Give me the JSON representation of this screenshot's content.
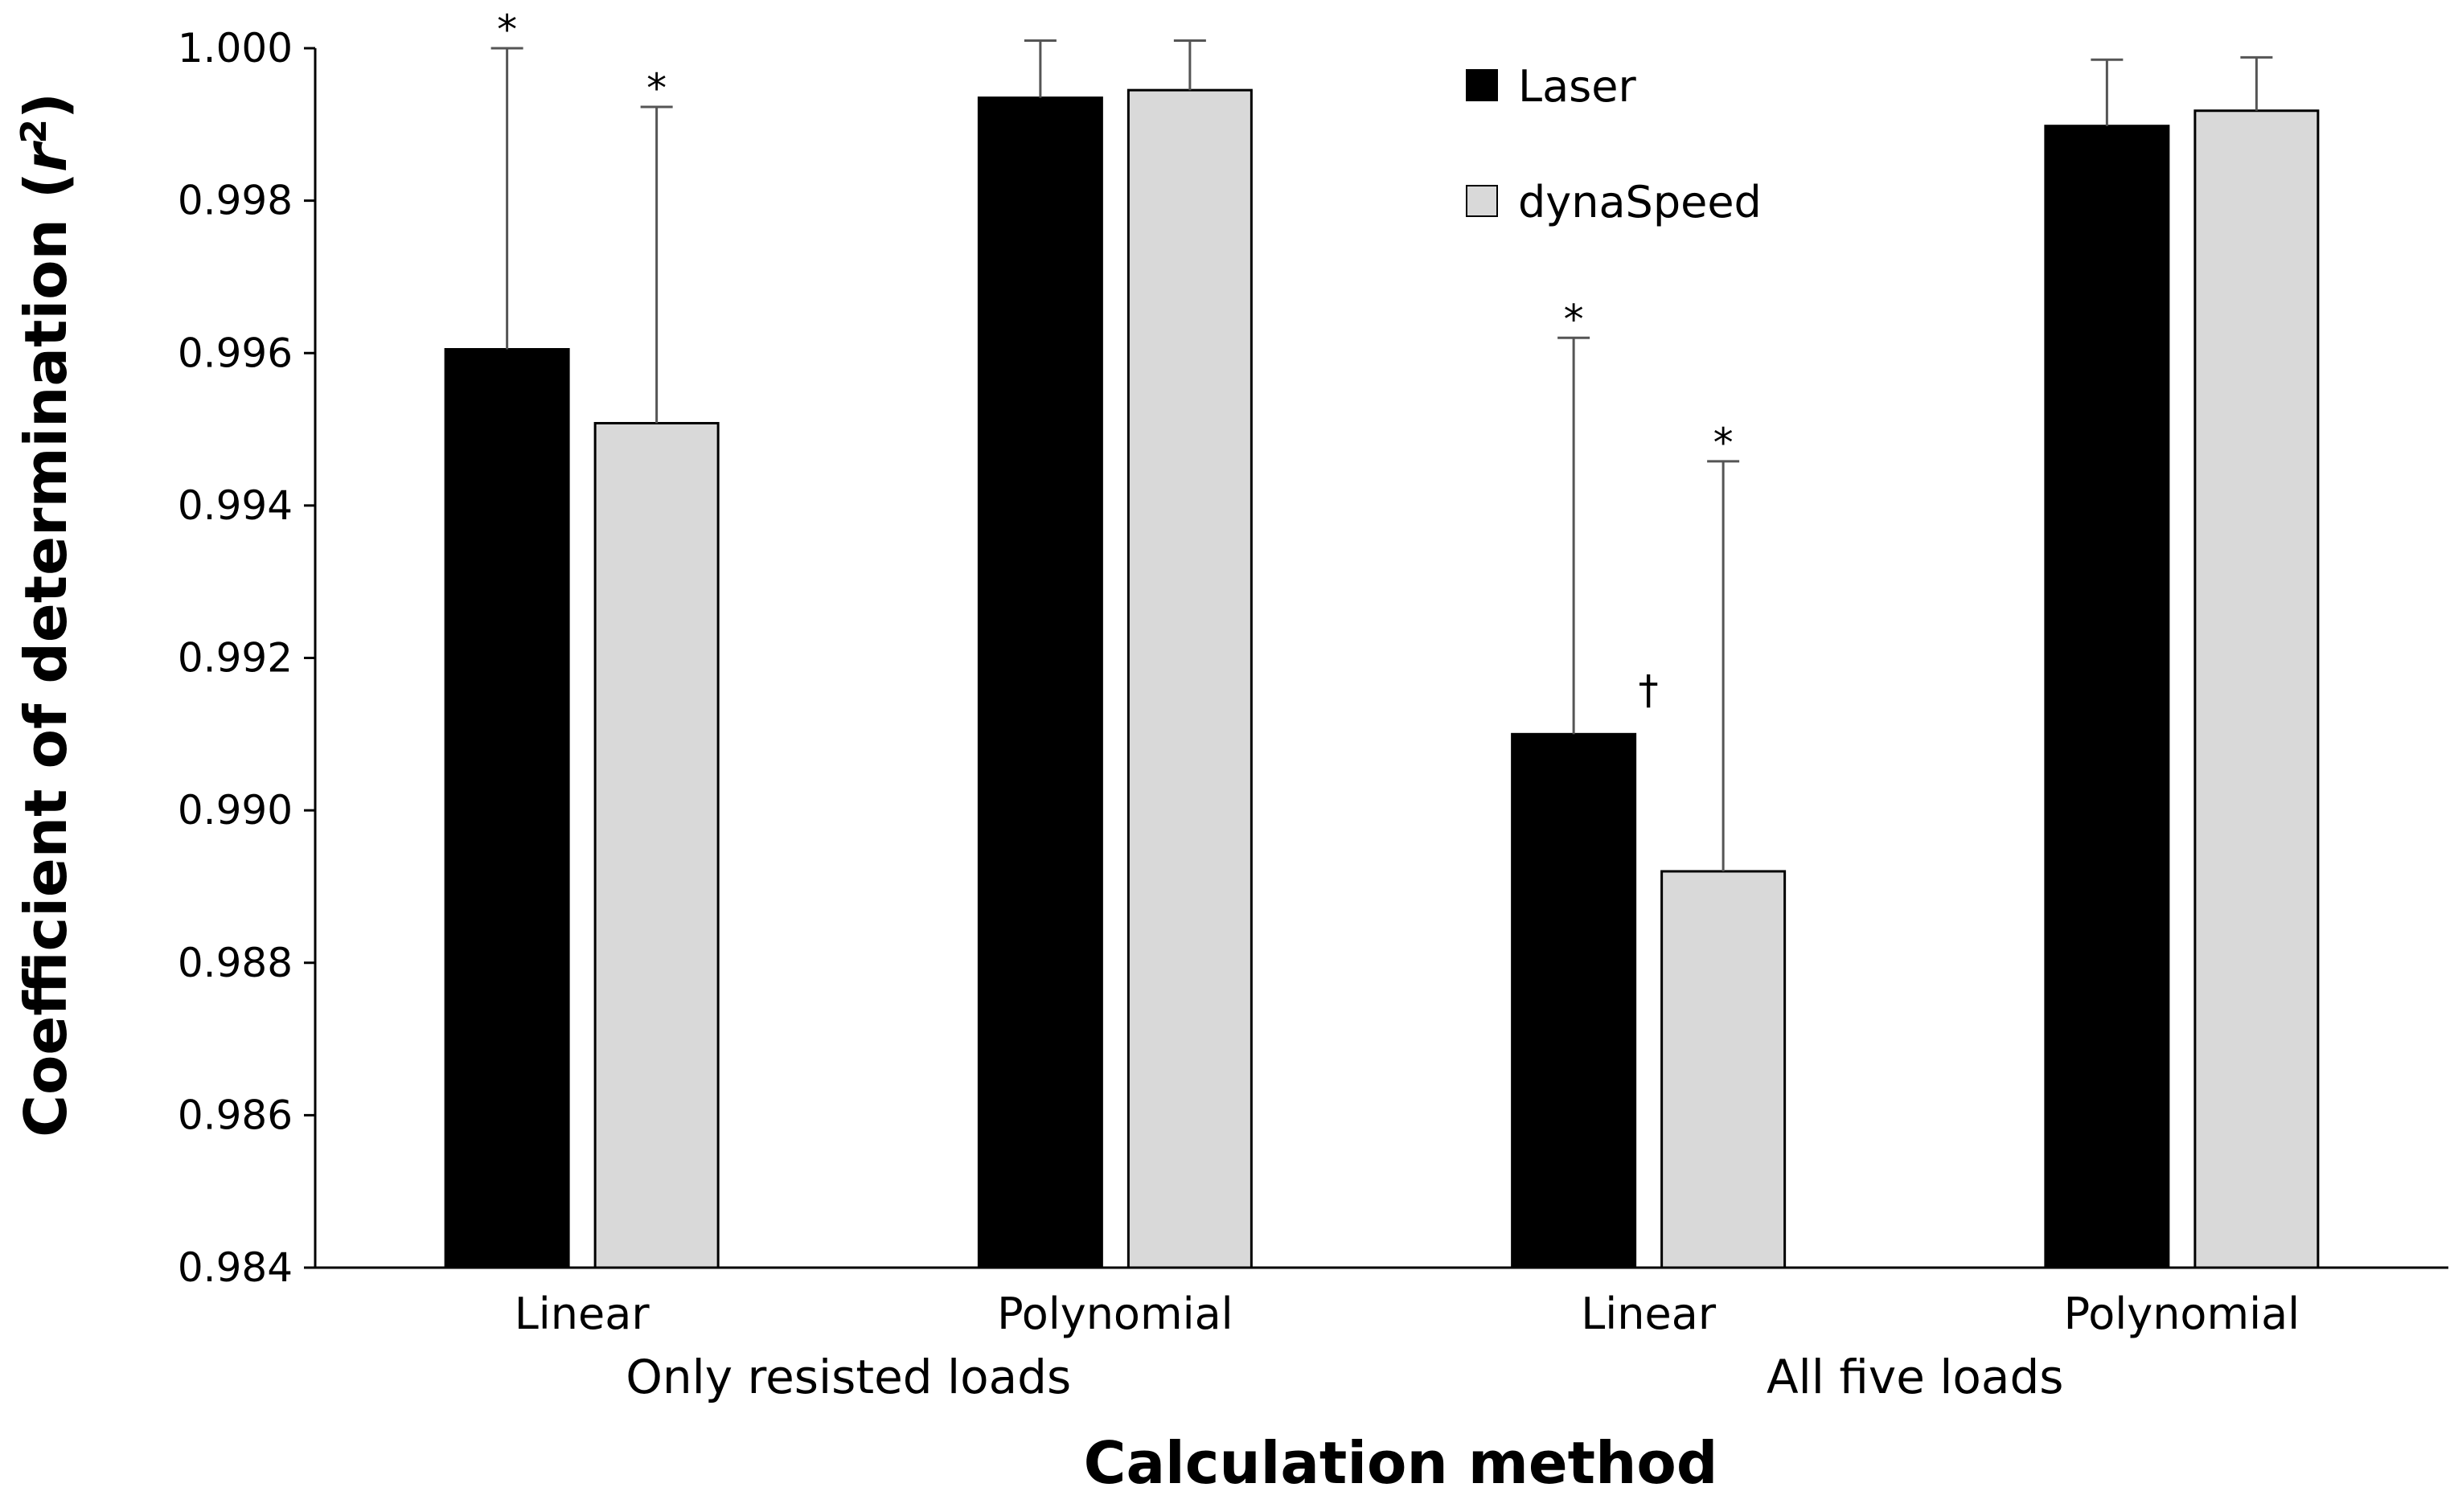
{
  "chart_data": {
    "type": "bar",
    "ylabel": "Coefficient of determination (r²)",
    "ylabel_parts": {
      "before": "Coefficient of determination (",
      "italic": "r",
      "sup": "2",
      "after": ")"
    },
    "xlabel": "Calculation method",
    "ylim": [
      0.984,
      1.0
    ],
    "yticks": [
      "0.984",
      "0.986",
      "0.988",
      "0.990",
      "0.992",
      "0.994",
      "0.996",
      "0.998",
      "1.000"
    ],
    "ytick_values": [
      0.984,
      0.986,
      0.988,
      0.99,
      0.992,
      0.994,
      0.996,
      0.998,
      1.0
    ],
    "categories": [
      "Linear",
      "Polynomial",
      "Linear",
      "Polynomial"
    ],
    "groups": [
      {
        "label": "Only resisted loads",
        "categories": [
          0,
          1
        ]
      },
      {
        "label": "All five loads",
        "categories": [
          2,
          3
        ]
      }
    ],
    "legend_placement": "top-center",
    "grid": false,
    "series": [
      {
        "name": "Laser",
        "color": "#000000",
        "values": [
          0.99605,
          0.99935,
          0.991,
          0.99898
        ],
        "error": [
          0.00395,
          0.00075,
          0.0052,
          0.00087
        ],
        "markers": [
          "*",
          "",
          "*",
          ""
        ]
      },
      {
        "name": "dynaSpeed",
        "color": "#d9d9d9",
        "values": [
          0.99508,
          0.99945,
          0.9892,
          0.99918
        ],
        "error": [
          0.00415,
          0.00065,
          0.00538,
          0.0007
        ],
        "markers": [
          "*",
          "",
          "*",
          ""
        ]
      }
    ],
    "annotations": [
      {
        "text": "†",
        "category": 2,
        "note": "between bars"
      }
    ]
  }
}
